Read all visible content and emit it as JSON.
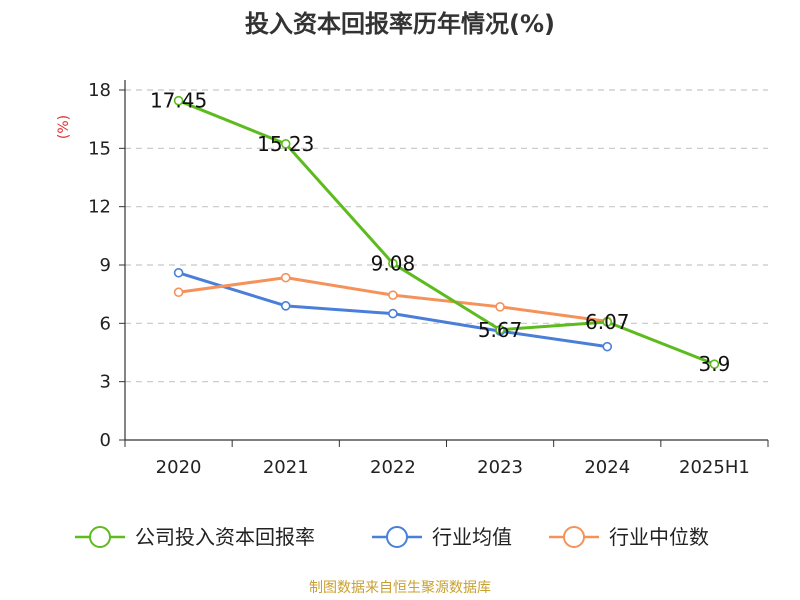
{
  "chart_data": {
    "type": "line",
    "title": "投入资本回报率历年情况(%)",
    "ylabel": "(%)",
    "categories": [
      "2020",
      "2021",
      "2022",
      "2023",
      "2024",
      "2025H1"
    ],
    "ylim": [
      0,
      18
    ],
    "yticks": [
      "0",
      "3",
      "6",
      "9",
      "12",
      "15",
      "18"
    ],
    "grid": true,
    "legend_position": "bottom",
    "series": [
      {
        "name": "公司投入资本回报率",
        "color": "#5dbb1e",
        "values": [
          17.45,
          15.23,
          9.08,
          5.67,
          6.07,
          3.9
        ],
        "labels": [
          "17.45",
          "15.23",
          "9.08",
          "5.67",
          "6.07",
          "3.9"
        ]
      },
      {
        "name": "行业均值",
        "color": "#4a7fd9",
        "values": [
          8.6,
          6.9,
          6.5,
          5.6,
          4.8,
          null
        ]
      },
      {
        "name": "行业中位数",
        "color": "#f5925a",
        "values": [
          7.6,
          8.35,
          7.45,
          6.85,
          6.1,
          null
        ]
      }
    ]
  },
  "source": "制图数据来自恒生聚源数据库"
}
